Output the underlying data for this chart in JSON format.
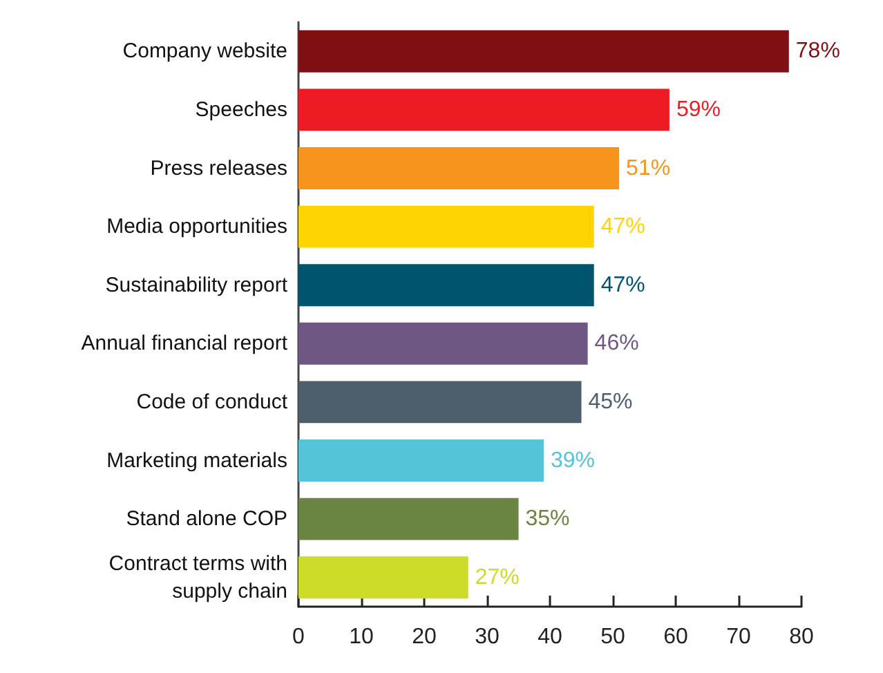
{
  "chart_data": {
    "type": "bar",
    "orientation": "horizontal",
    "categories": [
      "Company website",
      "Speeches",
      "Press releases",
      "Media opportunities",
      "Sustainability report",
      "Annual financial report",
      "Code of conduct",
      "Marketing materials",
      "Stand alone COP",
      "Contract terms with\nsupply chain"
    ],
    "values": [
      78,
      59,
      51,
      47,
      47,
      46,
      45,
      39,
      35,
      27
    ],
    "colors": [
      "#7f0f12",
      "#ed1c24",
      "#f7941d",
      "#ffd400",
      "#00546e",
      "#6f5783",
      "#4d5f6c",
      "#54c4d8",
      "#6a8441",
      "#cddc29"
    ],
    "value_labels": [
      "78%",
      "59%",
      "51%",
      "47%",
      "47%",
      "46%",
      "45%",
      "39%",
      "35%",
      "27%"
    ],
    "xlim": [
      0,
      80
    ],
    "xticks": [
      0,
      10,
      20,
      30,
      40,
      50,
      60,
      70,
      80
    ]
  }
}
